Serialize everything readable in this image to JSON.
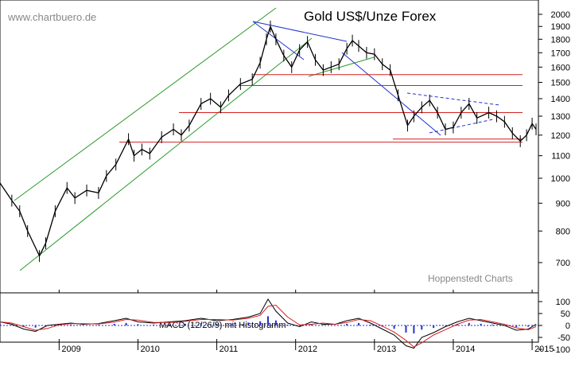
{
  "watermark": "www.chartbuero.de",
  "credit": "Hoppenstedt Charts",
  "chart_data": [
    {
      "type": "line",
      "title": "Gold US$/Unze Forex",
      "scale": "log",
      "ylim": [
        650,
        2050
      ],
      "xlim": [
        2008.25,
        2015.08
      ],
      "grid": false,
      "y_ticks": [
        700,
        800,
        900,
        1000,
        1100,
        1200,
        1300,
        1400,
        1500,
        1600,
        1700,
        1800,
        1900,
        2000
      ],
      "x_ticks": [
        "2009",
        "2010",
        "2011",
        "2012",
        "2013",
        "2014",
        "2015"
      ],
      "series": [
        {
          "x": [
            2008.25,
            2008.4,
            2008.5,
            2008.6,
            2008.75,
            2008.83,
            2008.95,
            2009.1,
            2009.2,
            2009.35,
            2009.5,
            2009.6,
            2009.72,
            2009.88,
            2009.95,
            2010.05,
            2010.15,
            2010.3,
            2010.45,
            2010.55,
            2010.65,
            2010.8,
            2010.92,
            2011.05,
            2011.15,
            2011.3,
            2011.45,
            2011.55,
            2011.63,
            2011.68,
            2011.75,
            2011.85,
            2011.95,
            2012.05,
            2012.15,
            2012.25,
            2012.35,
            2012.45,
            2012.55,
            2012.65,
            2012.72,
            2012.8,
            2012.9,
            2013.0,
            2013.1,
            2013.2,
            2013.3,
            2013.42,
            2013.5,
            2013.6,
            2013.7,
            2013.8,
            2013.9,
            2014.0,
            2014.1,
            2014.2,
            2014.3,
            2014.45,
            2014.55,
            2014.65,
            2014.75,
            2014.85,
            2014.93,
            2015.0,
            2015.05
          ],
          "values": [
            980,
            910,
            870,
            800,
            720,
            760,
            870,
            960,
            920,
            950,
            940,
            1010,
            1060,
            1180,
            1100,
            1130,
            1110,
            1190,
            1230,
            1200,
            1250,
            1370,
            1400,
            1350,
            1420,
            1490,
            1520,
            1630,
            1800,
            1900,
            1800,
            1680,
            1600,
            1720,
            1780,
            1650,
            1580,
            1600,
            1620,
            1730,
            1790,
            1750,
            1700,
            1690,
            1620,
            1580,
            1420,
            1250,
            1300,
            1350,
            1390,
            1320,
            1230,
            1240,
            1320,
            1370,
            1290,
            1320,
            1300,
            1270,
            1210,
            1170,
            1200,
            1260,
            1230
          ]
        }
      ],
      "horizontal_levels": [
        1165,
        1180,
        1320,
        1480,
        1550
      ],
      "annotations": [
        "Hoppenstedt Charts"
      ]
    },
    {
      "type": "line",
      "title": "MACD (12/26/9) mit Histogramm",
      "ylim": [
        -130,
        130
      ],
      "y_ticks": [
        100,
        50,
        0,
        -50,
        -100
      ],
      "series": [
        {
          "x": [
            2008.25,
            2008.4,
            2008.55,
            2008.7,
            2008.85,
            2009.0,
            2009.15,
            2009.3,
            2009.5,
            2009.7,
            2009.85,
            2010.0,
            2010.2,
            2010.4,
            2010.6,
            2010.8,
            2011.0,
            2011.2,
            2011.4,
            2011.55,
            2011.65,
            2011.75,
            2011.9,
            2012.05,
            2012.2,
            2012.35,
            2012.5,
            2012.65,
            2012.8,
            2012.95,
            2013.1,
            2013.25,
            2013.4,
            2013.5,
            2013.6,
            2013.75,
            2013.9,
            2014.05,
            2014.2,
            2014.35,
            2014.5,
            2014.65,
            2014.8,
            2014.95,
            2015.05
          ],
          "values": [
            15,
            5,
            -15,
            -25,
            0,
            5,
            10,
            5,
            8,
            20,
            30,
            15,
            10,
            15,
            20,
            30,
            20,
            25,
            35,
            50,
            110,
            60,
            10,
            -5,
            15,
            5,
            5,
            20,
            30,
            10,
            -15,
            -40,
            -85,
            -95,
            -50,
            -30,
            -5,
            15,
            30,
            20,
            10,
            0,
            -20,
            -15,
            5
          ]
        }
      ]
    }
  ]
}
